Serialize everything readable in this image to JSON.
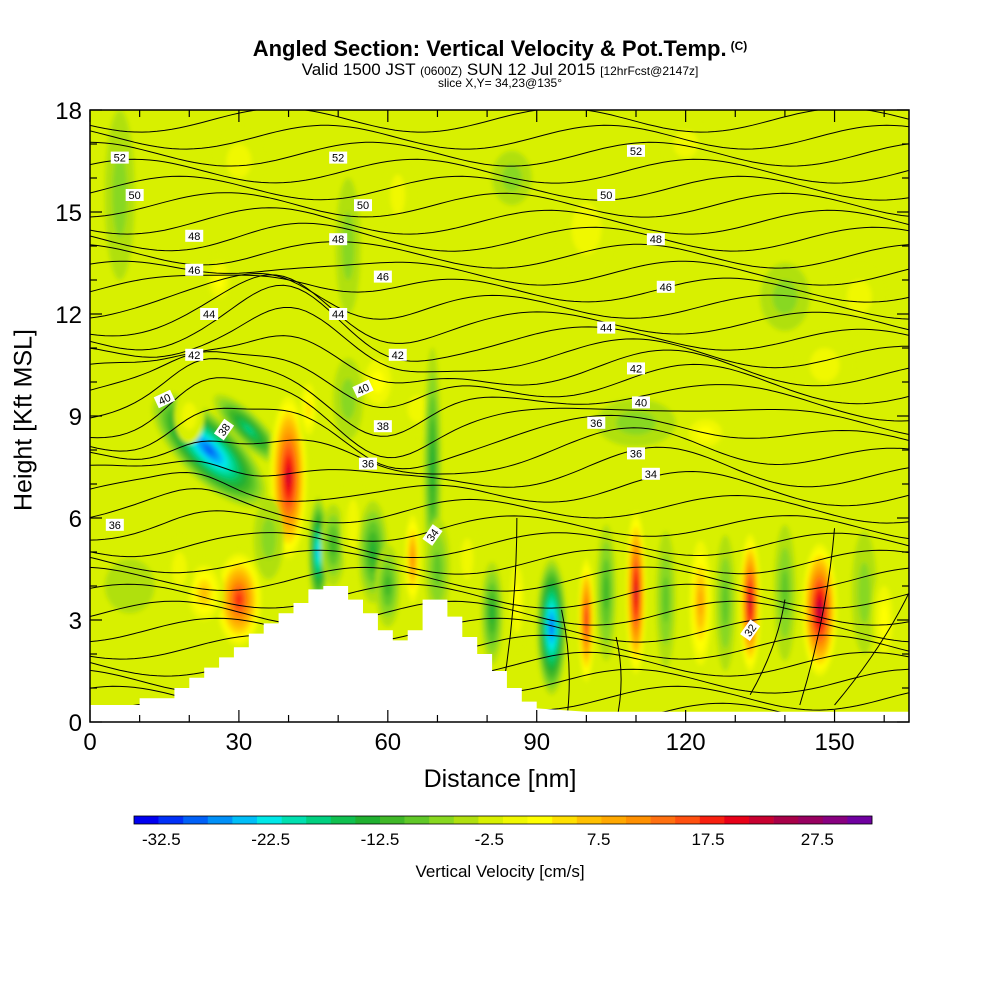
{
  "chart_data": {
    "type": "heatmap",
    "title": "Angled Section: Vertical Velocity & Pot.Temp.",
    "title_unit": "(C)",
    "subtitle_main": "Valid 1500 JST",
    "subtitle_z": "(0600Z)",
    "subtitle_date": "SUN 12 Jul 2015",
    "subtitle_fcst": "[12hrFcst@2147z]",
    "slice_text": "slice X,Y= 34,23@135°",
    "xlabel": "Distance [nm]",
    "ylabel": "Height [Kft MSL]",
    "xlim": [
      0,
      165
    ],
    "ylim": [
      0,
      18
    ],
    "x_ticks": [
      "0",
      "30",
      "60",
      "90",
      "120",
      "150"
    ],
    "y_ticks": [
      "0",
      "3",
      "6",
      "9",
      "12",
      "15",
      "18"
    ],
    "colorbar": {
      "label": "Vertical Velocity [cm/s]",
      "ticks": [
        "-32.5",
        "-22.5",
        "-12.5",
        "-2.5",
        "7.5",
        "17.5",
        "27.5"
      ],
      "min": -35,
      "max": 32.5,
      "step": 2.5,
      "colors": [
        "#0000f0",
        "#0030f8",
        "#0060f8",
        "#0090f8",
        "#00bef8",
        "#00e8e8",
        "#00e0b0",
        "#00d080",
        "#10c050",
        "#20b030",
        "#40b828",
        "#60c828",
        "#88d820",
        "#b0e010",
        "#d8f000",
        "#f0f800",
        "#ffff00",
        "#ffe000",
        "#ffc000",
        "#ffa800",
        "#ff9000",
        "#ff7010",
        "#ff5010",
        "#f82010",
        "#e80018",
        "#c80030",
        "#a80048",
        "#980060",
        "#880080",
        "#7000a0"
      ]
    },
    "theta_contour_labels": [
      "52",
      "52",
      "52",
      "50",
      "50",
      "50",
      "48",
      "48",
      "48",
      "46",
      "46",
      "46",
      "44",
      "44",
      "44",
      "42",
      "42",
      "42",
      "40",
      "40",
      "40",
      "38",
      "38",
      "36",
      "36",
      "36",
      "36",
      "34",
      "34",
      "32"
    ],
    "terrain": [
      [
        0,
        0.5
      ],
      [
        10,
        0.5
      ],
      [
        10,
        0.7
      ],
      [
        17,
        0.7
      ],
      [
        17,
        1.0
      ],
      [
        20,
        1.0
      ],
      [
        20,
        1.3
      ],
      [
        23,
        1.3
      ],
      [
        23,
        1.6
      ],
      [
        26,
        1.6
      ],
      [
        26,
        1.9
      ],
      [
        29,
        1.9
      ],
      [
        29,
        2.2
      ],
      [
        32,
        2.2
      ],
      [
        32,
        2.6
      ],
      [
        35,
        2.6
      ],
      [
        35,
        2.9
      ],
      [
        38,
        2.9
      ],
      [
        38,
        3.2
      ],
      [
        41,
        3.2
      ],
      [
        41,
        3.5
      ],
      [
        44,
        3.5
      ],
      [
        44,
        3.9
      ],
      [
        47,
        3.9
      ],
      [
        47,
        4.0
      ],
      [
        52,
        4.0
      ],
      [
        52,
        3.6
      ],
      [
        55,
        3.6
      ],
      [
        55,
        3.2
      ],
      [
        58,
        3.2
      ],
      [
        58,
        2.7
      ],
      [
        61,
        2.7
      ],
      [
        61,
        2.4
      ],
      [
        64,
        2.4
      ],
      [
        64,
        2.7
      ],
      [
        67,
        2.7
      ],
      [
        67,
        3.6
      ],
      [
        72,
        3.6
      ],
      [
        72,
        3.1
      ],
      [
        75,
        3.1
      ],
      [
        75,
        2.5
      ],
      [
        78,
        2.5
      ],
      [
        78,
        2.0
      ],
      [
        81,
        2.0
      ],
      [
        81,
        1.5
      ],
      [
        84,
        1.5
      ],
      [
        84,
        1.0
      ],
      [
        87,
        1.0
      ],
      [
        87,
        0.6
      ],
      [
        90,
        0.6
      ],
      [
        90,
        0.4
      ],
      [
        100,
        0.3
      ],
      [
        165,
        0.3
      ]
    ],
    "cells": [
      {
        "x": 24,
        "y": 8.0,
        "sx": 6,
        "sy": 2.2,
        "rot": -45,
        "v": -30
      },
      {
        "x": 32,
        "y": 8.6,
        "sx": 3,
        "sy": 1.4,
        "rot": -45,
        "v": -18
      },
      {
        "x": 40,
        "y": 7.2,
        "sx": 4,
        "sy": 2.6,
        "rot": 0,
        "v": 30
      },
      {
        "x": 44,
        "y": 9.2,
        "sx": 2,
        "sy": 1.0,
        "rot": 0,
        "v": 10
      },
      {
        "x": 30,
        "y": 3.6,
        "sx": 5,
        "sy": 1.5,
        "rot": 0,
        "v": 24
      },
      {
        "x": 23,
        "y": 3.8,
        "sx": 4,
        "sy": 1.0,
        "rot": 0,
        "v": 12
      },
      {
        "x": 18,
        "y": 4.5,
        "sx": 3,
        "sy": 1.0,
        "rot": 0,
        "v": 6
      },
      {
        "x": 36,
        "y": 5.4,
        "sx": 3,
        "sy": 1.2,
        "rot": 0,
        "v": -6
      },
      {
        "x": 46,
        "y": 5.0,
        "sx": 2,
        "sy": 1.6,
        "rot": 0,
        "v": -26
      },
      {
        "x": 49,
        "y": 5.2,
        "sx": 2.5,
        "sy": 1.2,
        "rot": 0,
        "v": -10
      },
      {
        "x": 53,
        "y": 5.8,
        "sx": 2.5,
        "sy": 1.5,
        "rot": 0,
        "v": 5
      },
      {
        "x": 57,
        "y": 5.0,
        "sx": 3,
        "sy": 1.5,
        "rot": 0,
        "v": -12
      },
      {
        "x": 60,
        "y": 4.0,
        "sx": 2.5,
        "sy": 1.2,
        "rot": 0,
        "v": -10
      },
      {
        "x": 58,
        "y": 10.0,
        "sx": 4,
        "sy": 1.0,
        "rot": 0,
        "v": 8
      },
      {
        "x": 66,
        "y": 9.2,
        "sx": 4,
        "sy": 0.8,
        "rot": 0,
        "v": 6
      },
      {
        "x": 52,
        "y": 9.5,
        "sx": 3,
        "sy": 1.2,
        "rot": 0,
        "v": -4
      },
      {
        "x": 65,
        "y": 4.8,
        "sx": 1.8,
        "sy": 1.5,
        "rot": 0,
        "v": 18
      },
      {
        "x": 69,
        "y": 7.5,
        "sx": 1.8,
        "sy": 3.5,
        "rot": 0,
        "v": -12
      },
      {
        "x": 70,
        "y": 4.5,
        "sx": 2.5,
        "sy": 1.5,
        "rot": 0,
        "v": -8
      },
      {
        "x": 76,
        "y": 4.8,
        "sx": 2.5,
        "sy": 1.2,
        "rot": 0,
        "v": 6
      },
      {
        "x": 81,
        "y": 3.2,
        "sx": 2.2,
        "sy": 1.5,
        "rot": 0,
        "v": -12
      },
      {
        "x": 86,
        "y": 3.6,
        "sx": 2,
        "sy": 1.5,
        "rot": 0,
        "v": 8
      },
      {
        "x": 93,
        "y": 2.8,
        "sx": 3,
        "sy": 2.0,
        "rot": 0,
        "v": -30
      },
      {
        "x": 100,
        "y": 3.0,
        "sx": 1.8,
        "sy": 2.0,
        "rot": 0,
        "v": 24
      },
      {
        "x": 104,
        "y": 3.8,
        "sx": 2,
        "sy": 2.0,
        "rot": 0,
        "v": -10
      },
      {
        "x": 110,
        "y": 3.8,
        "sx": 2.2,
        "sy": 2.6,
        "rot": 0,
        "v": 30
      },
      {
        "x": 116,
        "y": 3.6,
        "sx": 2,
        "sy": 2.0,
        "rot": 0,
        "v": -8
      },
      {
        "x": 123,
        "y": 3.5,
        "sx": 2.6,
        "sy": 2.2,
        "rot": 0,
        "v": 16
      },
      {
        "x": 128,
        "y": 3.5,
        "sx": 2,
        "sy": 2.0,
        "rot": 0,
        "v": -8
      },
      {
        "x": 133,
        "y": 3.5,
        "sx": 2.3,
        "sy": 2.2,
        "rot": 0,
        "v": 30
      },
      {
        "x": 140,
        "y": 3.8,
        "sx": 2.2,
        "sy": 2.0,
        "rot": 0,
        "v": -8
      },
      {
        "x": 147,
        "y": 3.3,
        "sx": 3.8,
        "sy": 2.1,
        "rot": 0,
        "v": 32
      },
      {
        "x": 156,
        "y": 3.8,
        "sx": 2.5,
        "sy": 1.8,
        "rot": 0,
        "v": -6
      },
      {
        "x": 160,
        "y": 3.0,
        "sx": 2.5,
        "sy": 1.5,
        "rot": 0,
        "v": 8
      },
      {
        "x": 110,
        "y": 8.8,
        "sx": 8,
        "sy": 0.7,
        "rot": 0,
        "v": -5
      },
      {
        "x": 124,
        "y": 8.5,
        "sx": 5,
        "sy": 0.6,
        "rot": 0,
        "v": 7
      },
      {
        "x": 148,
        "y": 10.5,
        "sx": 6,
        "sy": 1.0,
        "rot": 0,
        "v": 6
      },
      {
        "x": 100,
        "y": 14.5,
        "sx": 6,
        "sy": 1.5,
        "rot": 0,
        "v": 5
      },
      {
        "x": 120,
        "y": 17.0,
        "sx": 5,
        "sy": 0.8,
        "rot": 0,
        "v": 6
      },
      {
        "x": 140,
        "y": 12.5,
        "sx": 5,
        "sy": 1.0,
        "rot": 0,
        "v": -4
      },
      {
        "x": 52,
        "y": 14.0,
        "sx": 2.5,
        "sy": 2.0,
        "rot": 0,
        "v": -6
      },
      {
        "x": 62,
        "y": 15.5,
        "sx": 3,
        "sy": 1.2,
        "rot": 0,
        "v": 5
      },
      {
        "x": 6,
        "y": 15.5,
        "sx": 3,
        "sy": 2.5,
        "rot": 0,
        "v": -6
      },
      {
        "x": 30,
        "y": 16.5,
        "sx": 5,
        "sy": 1.0,
        "rot": 0,
        "v": 4
      },
      {
        "x": 26,
        "y": 13.0,
        "sx": 3,
        "sy": 0.8,
        "rot": 0,
        "v": 7
      },
      {
        "x": 85,
        "y": 16.0,
        "sx": 4,
        "sy": 0.8,
        "rot": 0,
        "v": -4
      },
      {
        "x": 20,
        "y": 9.0,
        "sx": 3,
        "sy": 0.8,
        "rot": 0,
        "v": 6
      },
      {
        "x": 8,
        "y": 4.0,
        "sx": 5,
        "sy": 0.8,
        "rot": 0,
        "v": -3
      },
      {
        "x": 155,
        "y": 12.5,
        "sx": 5,
        "sy": 1.0,
        "rot": 0,
        "v": 4
      }
    ]
  }
}
